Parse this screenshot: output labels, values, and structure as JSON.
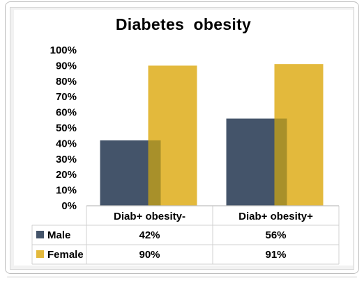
{
  "chart_data": {
    "type": "bar",
    "title": "Diabetes  obesity",
    "categories": [
      "Diab+ obesity-",
      "Diab+ obesity+"
    ],
    "series": [
      {
        "name": "Male",
        "values": [
          42,
          56
        ],
        "labels": [
          "42%",
          "56%"
        ],
        "color": "#44546a"
      },
      {
        "name": "Female",
        "values": [
          90,
          91
        ],
        "labels": [
          "90%",
          "91%"
        ],
        "color": "#e3b93c"
      }
    ],
    "shadow_color": "#a8902a",
    "ylim": [
      0,
      100
    ],
    "yticks": [
      0,
      10,
      20,
      30,
      40,
      50,
      60,
      70,
      80,
      90,
      100
    ],
    "ytick_labels": [
      "0%",
      "10%",
      "20%",
      "30%",
      "40%",
      "50%",
      "60%",
      "70%",
      "80%",
      "90%",
      "100%"
    ],
    "xlabel": "",
    "ylabel": "",
    "grid": false,
    "legend_placement": "data-table-left",
    "data_table": true
  }
}
